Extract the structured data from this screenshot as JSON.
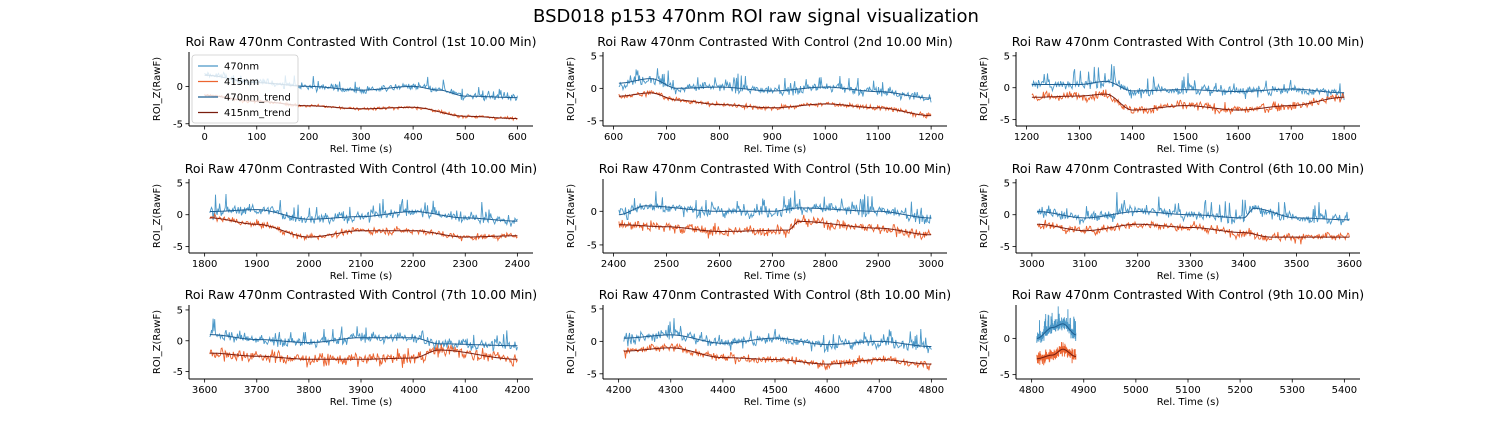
{
  "title": "BSD018 p153 470nm ROI  raw signal visualization",
  "colors": {
    "470nm": "#4b98c8",
    "415nm": "#ec6430",
    "470nm_trend": "#1f5f92",
    "415nm_trend": "#7a1d0e",
    "axis": "#000000"
  },
  "legend": {
    "placement": "upper-left of first panel",
    "entries": [
      "470nm",
      "415nm",
      "470nm_trend",
      "415nm_trend"
    ]
  },
  "chart_data": [
    {
      "type": "line",
      "title": "Roi Raw 470nm Contrasted With Control (1st 10.00 Min)",
      "xlabel": "Rel. Time (s)",
      "ylabel": "ROI_Z(RawF)",
      "xlim": [
        -30,
        630
      ],
      "ylim": [
        -5.3,
        4.6
      ],
      "xticks": [
        0,
        100,
        200,
        300,
        400,
        500,
        600
      ],
      "yticks": [
        -5,
        0
      ],
      "data_range": [
        0,
        600
      ],
      "series": [
        {
          "name": "470nm",
          "trend": [
            [
              0,
              1.5
            ],
            [
              100,
              0.5
            ],
            [
              200,
              0
            ],
            [
              300,
              -0.5
            ],
            [
              400,
              0
            ],
            [
              450,
              -0.5
            ],
            [
              500,
              -1.3
            ],
            [
              600,
              -1.5
            ]
          ],
          "noise": 0.55
        },
        {
          "name": "415nm",
          "trend": [
            [
              0,
              -1.2
            ],
            [
              100,
              -2
            ],
            [
              200,
              -2.6
            ],
            [
              300,
              -3
            ],
            [
              400,
              -2.8
            ],
            [
              500,
              -4
            ],
            [
              600,
              -4.3
            ]
          ],
          "noise": 0.25
        }
      ],
      "legend": true
    },
    {
      "type": "line",
      "title": "Roi Raw 470nm Contrasted With Control (2nd 10.00 Min)",
      "xlabel": "Rel. Time (s)",
      "ylabel": "ROI_Z(RawF)",
      "xlim": [
        580,
        1230
      ],
      "ylim": [
        -5.8,
        5.6
      ],
      "xticks": [
        600,
        700,
        800,
        900,
        1000,
        1100,
        1200
      ],
      "yticks": [
        -5,
        0,
        5
      ],
      "data_range": [
        610,
        1200
      ],
      "series": [
        {
          "name": "470nm",
          "trend": [
            [
              610,
              0.8
            ],
            [
              670,
              1.5
            ],
            [
              720,
              0
            ],
            [
              800,
              0.2
            ],
            [
              900,
              -0.4
            ],
            [
              1000,
              0.2
            ],
            [
              1100,
              -0.5
            ],
            [
              1200,
              -1.5
            ]
          ],
          "noise": 0.9
        },
        {
          "name": "415nm",
          "trend": [
            [
              610,
              -1.2
            ],
            [
              670,
              -0.7
            ],
            [
              720,
              -1.8
            ],
            [
              800,
              -2.5
            ],
            [
              900,
              -3
            ],
            [
              1000,
              -2.4
            ],
            [
              1100,
              -3
            ],
            [
              1200,
              -4.2
            ]
          ],
          "noise": 0.45
        }
      ]
    },
    {
      "type": "line",
      "title": "Roi Raw 470nm Contrasted With Control (3th 10.00 Min)",
      "xlabel": "Rel. Time (s)",
      "ylabel": "ROI_Z(RawF)",
      "xlim": [
        1180,
        1830
      ],
      "ylim": [
        -6,
        5.6
      ],
      "xticks": [
        1200,
        1300,
        1400,
        1500,
        1600,
        1700,
        1800
      ],
      "yticks": [
        -5,
        0,
        5
      ],
      "data_range": [
        1210,
        1800
      ],
      "series": [
        {
          "name": "470nm",
          "trend": [
            [
              1210,
              0.5
            ],
            [
              1300,
              0.5
            ],
            [
              1350,
              1
            ],
            [
              1400,
              -0.5
            ],
            [
              1500,
              -0.3
            ],
            [
              1600,
              -0.6
            ],
            [
              1700,
              -0.2
            ],
            [
              1800,
              -0.8
            ]
          ],
          "noise": 1.0
        },
        {
          "name": "415nm",
          "trend": [
            [
              1210,
              -1.5
            ],
            [
              1300,
              -1.3
            ],
            [
              1350,
              -1
            ],
            [
              1400,
              -3.5
            ],
            [
              1500,
              -2.8
            ],
            [
              1600,
              -3.5
            ],
            [
              1700,
              -2.8
            ],
            [
              1800,
              -1.5
            ]
          ],
          "noise": 0.9
        }
      ]
    },
    {
      "type": "line",
      "title": "Roi Raw 470nm Contrasted With Control (4th 10.00 Min)",
      "xlabel": "Rel. Time (s)",
      "ylabel": "ROI_Z(RawF)",
      "xlim": [
        1770,
        2430
      ],
      "ylim": [
        -6,
        5.6
      ],
      "xticks": [
        1800,
        1900,
        2000,
        2100,
        2200,
        2300,
        2400
      ],
      "yticks": [
        -5,
        0,
        5
      ],
      "data_range": [
        1810,
        2400
      ],
      "series": [
        {
          "name": "470nm",
          "trend": [
            [
              1810,
              0.5
            ],
            [
              1900,
              0.8
            ],
            [
              2000,
              -0.7
            ],
            [
              2100,
              -0.3
            ],
            [
              2200,
              0.5
            ],
            [
              2300,
              -0.5
            ],
            [
              2400,
              -1
            ]
          ],
          "noise": 1.0
        },
        {
          "name": "415nm",
          "trend": [
            [
              1810,
              -0.5
            ],
            [
              1900,
              -1.5
            ],
            [
              2000,
              -3.5
            ],
            [
              2100,
              -2.5
            ],
            [
              2200,
              -2.5
            ],
            [
              2300,
              -3.5
            ],
            [
              2400,
              -3.3
            ]
          ],
          "noise": 0.6
        }
      ]
    },
    {
      "type": "line",
      "title": "Roi Raw 470nm Contrasted With Control (5th 10.00 Min)",
      "xlabel": "Rel. Time (s)",
      "ylabel": "ROI_Z(RawF)",
      "xlim": [
        2380,
        3030
      ],
      "ylim": [
        -6.2,
        4.8
      ],
      "xticks": [
        2400,
        2500,
        2600,
        2700,
        2800,
        2900,
        3000
      ],
      "yticks": [
        -5,
        0
      ],
      "data_range": [
        2410,
        3000
      ],
      "series": [
        {
          "name": "470nm",
          "trend": [
            [
              2410,
              -0.5
            ],
            [
              2460,
              0.8
            ],
            [
              2600,
              0
            ],
            [
              2700,
              0
            ],
            [
              2750,
              0.5
            ],
            [
              2900,
              0
            ],
            [
              3000,
              -1
            ]
          ],
          "noise": 1.0
        },
        {
          "name": "415nm",
          "trend": [
            [
              2410,
              -2
            ],
            [
              2500,
              -2.3
            ],
            [
              2600,
              -3
            ],
            [
              2730,
              -2.8
            ],
            [
              2750,
              -1.5
            ],
            [
              2900,
              -2.5
            ],
            [
              3000,
              -3.5
            ]
          ],
          "noise": 1.0
        }
      ]
    },
    {
      "type": "line",
      "title": "Roi Raw 470nm Contrasted With Control (6th 10.00 Min)",
      "xlabel": "Rel. Time (s)",
      "ylabel": "ROI_Z(RawF)",
      "xlim": [
        2970,
        3620
      ],
      "ylim": [
        -6,
        5.6
      ],
      "xticks": [
        3000,
        3100,
        3200,
        3300,
        3400,
        3500,
        3600
      ],
      "yticks": [
        -5,
        0,
        5
      ],
      "data_range": [
        3010,
        3600
      ],
      "series": [
        {
          "name": "470nm",
          "trend": [
            [
              3010,
              0.5
            ],
            [
              3100,
              -0.5
            ],
            [
              3200,
              0.5
            ],
            [
              3300,
              0
            ],
            [
              3400,
              -0.5
            ],
            [
              3420,
              1
            ],
            [
              3500,
              -0.5
            ],
            [
              3600,
              -0.8
            ]
          ],
          "noise": 1.0
        },
        {
          "name": "415nm",
          "trend": [
            [
              3010,
              -1.5
            ],
            [
              3100,
              -2.5
            ],
            [
              3200,
              -1.5
            ],
            [
              3300,
              -2
            ],
            [
              3400,
              -2.8
            ],
            [
              3450,
              -3.5
            ],
            [
              3600,
              -3.5
            ]
          ],
          "noise": 0.8
        }
      ]
    },
    {
      "type": "line",
      "title": "Roi Raw 470nm Contrasted With Control (7th 10.00 Min)",
      "xlabel": "Rel. Time (s)",
      "ylabel": "ROI_Z(RawF)",
      "xlim": [
        3570,
        4230
      ],
      "ylim": [
        -6.2,
        5.8
      ],
      "xticks": [
        3600,
        3700,
        3800,
        3900,
        4000,
        4100,
        4200
      ],
      "yticks": [
        -5,
        0,
        5
      ],
      "data_range": [
        3610,
        4200
      ],
      "series": [
        {
          "name": "470nm",
          "trend": [
            [
              3610,
              1
            ],
            [
              3700,
              0.2
            ],
            [
              3800,
              -0.3
            ],
            [
              3900,
              0.5
            ],
            [
              4000,
              0.5
            ],
            [
              4050,
              -0.5
            ],
            [
              4200,
              -0.8
            ]
          ],
          "noise": 1.0
        },
        {
          "name": "415nm",
          "trend": [
            [
              3610,
              -2
            ],
            [
              3700,
              -2.5
            ],
            [
              3800,
              -3
            ],
            [
              3900,
              -3
            ],
            [
              4000,
              -2.8
            ],
            [
              4050,
              -1.5
            ],
            [
              4200,
              -3
            ]
          ],
          "noise": 1.2
        }
      ]
    },
    {
      "type": "line",
      "title": "Roi Raw 470nm Contrasted With Control (8th 10.00 Min)",
      "xlabel": "Rel. Time (s)",
      "ylabel": "ROI_Z(RawF)",
      "xlim": [
        4170,
        4830
      ],
      "ylim": [
        -5.8,
        5.6
      ],
      "xticks": [
        4200,
        4300,
        4400,
        4500,
        4600,
        4700,
        4800
      ],
      "yticks": [
        -5,
        0,
        5
      ],
      "data_range": [
        4210,
        4800
      ],
      "series": [
        {
          "name": "470nm",
          "trend": [
            [
              4210,
              0.5
            ],
            [
              4300,
              1
            ],
            [
              4400,
              -0.3
            ],
            [
              4500,
              0.5
            ],
            [
              4600,
              -0.5
            ],
            [
              4700,
              0
            ],
            [
              4800,
              -0.8
            ]
          ],
          "noise": 1.0
        },
        {
          "name": "415nm",
          "trend": [
            [
              4210,
              -1.5
            ],
            [
              4300,
              -1
            ],
            [
              4400,
              -2.5
            ],
            [
              4500,
              -2.8
            ],
            [
              4600,
              -3.5
            ],
            [
              4700,
              -2.8
            ],
            [
              4800,
              -3.5
            ]
          ],
          "noise": 0.8
        }
      ]
    },
    {
      "type": "line",
      "title": "Roi Raw 470nm Contrasted With Control (9th 10.00 Min)",
      "xlabel": "Rel. Time (s)",
      "ylabel": "ROI_Z(RawF)",
      "xlim": [
        4770,
        5430
      ],
      "ylim": [
        -5.6,
        4.6
      ],
      "xticks": [
        4800,
        4900,
        5000,
        5100,
        5200,
        5300,
        5400
      ],
      "yticks": [
        -5,
        0
      ],
      "data_range": [
        4810,
        4885
      ],
      "series": [
        {
          "name": "470nm",
          "trend": [
            [
              4810,
              0
            ],
            [
              4840,
              1.5
            ],
            [
              4860,
              2
            ],
            [
              4885,
              0.5
            ]
          ],
          "noise": 1.0
        },
        {
          "name": "415nm",
          "trend": [
            [
              4810,
              -2.8
            ],
            [
              4840,
              -2.3
            ],
            [
              4860,
              -1.5
            ],
            [
              4885,
              -2.5
            ]
          ],
          "noise": 0.9
        }
      ]
    }
  ]
}
